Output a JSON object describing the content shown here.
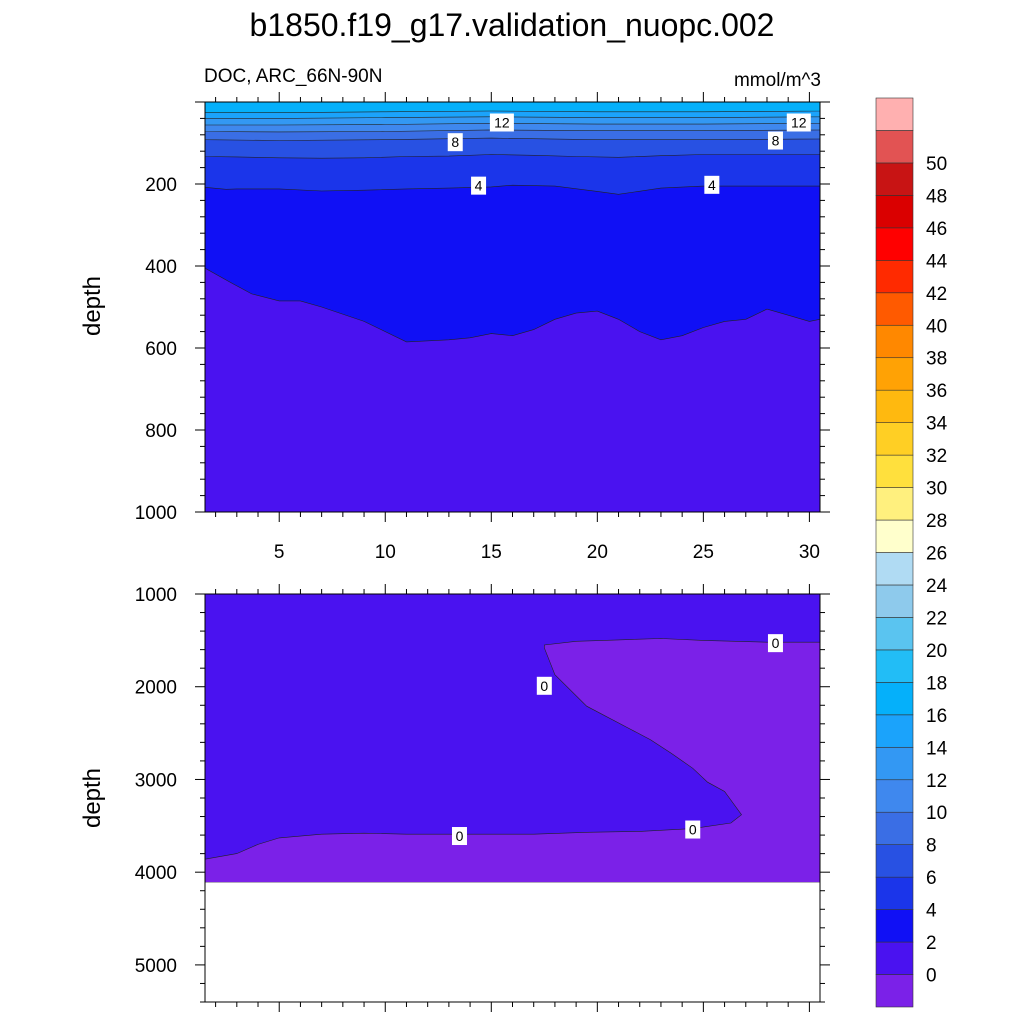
{
  "figure": {
    "title": "b1850.f19_g17.validation_nuopc.002",
    "variable_label": "DOC, ARC_66N-90N",
    "units": "mmol/m^3"
  },
  "chart_data": [
    {
      "type": "contour",
      "panel": "upper",
      "xlabel": "",
      "ylabel": "depth",
      "xlim": [
        1.5,
        30.5
      ],
      "ylim": [
        1000,
        0
      ],
      "x_ticks": [
        5,
        10,
        15,
        20,
        25,
        30
      ],
      "y_ticks": [
        200,
        400,
        600,
        800,
        1000
      ],
      "contour_labels": [
        {
          "text": "12",
          "x": 15.5,
          "y": 50
        },
        {
          "text": "12",
          "x": 29.5,
          "y": 50
        },
        {
          "text": "8",
          "x": 13.3,
          "y": 98
        },
        {
          "text": "8",
          "x": 28.4,
          "y": 94
        },
        {
          "text": "4",
          "x": 14.4,
          "y": 204
        },
        {
          "text": "4",
          "x": 25.4,
          "y": 202
        }
      ],
      "level_boundaries": [
        {
          "level": 2,
          "x": [
            1.5,
            2.7,
            3.7,
            5,
            6,
            7,
            9,
            11,
            13,
            14,
            15,
            16,
            17,
            18,
            19,
            20,
            21,
            22,
            23,
            24,
            25,
            26,
            27,
            28,
            29,
            30,
            30.5
          ],
          "y": [
            405,
            440,
            468,
            485,
            485,
            500,
            535,
            585,
            580,
            575,
            565,
            570,
            555,
            530,
            515,
            510,
            530,
            560,
            580,
            570,
            550,
            535,
            530,
            505,
            520,
            535,
            530
          ]
        },
        {
          "level": 4,
          "x": [
            1.5,
            2.5,
            3,
            5,
            7,
            9,
            11,
            13,
            15,
            16,
            18,
            20,
            21,
            23,
            25,
            27,
            29,
            30.5
          ],
          "y": [
            208,
            213,
            212,
            212,
            217,
            215,
            212,
            210,
            207,
            203,
            205,
            218,
            225,
            210,
            205,
            205,
            205,
            205
          ]
        },
        {
          "level": 6,
          "x": [
            1.5,
            3,
            5,
            7,
            9,
            11,
            13,
            15,
            17,
            19,
            21,
            23,
            25,
            27,
            29,
            30.5
          ],
          "y": [
            133,
            134,
            136,
            137,
            136,
            133,
            132,
            128,
            130,
            133,
            135,
            131,
            128,
            128,
            128,
            128
          ]
        },
        {
          "level": 8,
          "x": [
            1.5,
            5,
            10,
            15,
            20,
            25,
            30.5
          ],
          "y": [
            92,
            94,
            92,
            88,
            92,
            92,
            90
          ]
        },
        {
          "level": 10,
          "x": [
            1.5,
            5,
            10,
            15,
            20,
            25,
            30.5
          ],
          "y": [
            72,
            73,
            72,
            68,
            70,
            70,
            68
          ]
        },
        {
          "level": 12,
          "x": [
            1.5,
            5,
            10,
            15,
            20,
            25,
            30.5
          ],
          "y": [
            56,
            56,
            55,
            52,
            54,
            54,
            52
          ]
        },
        {
          "level": 14,
          "x": [
            1.5,
            5,
            10,
            15,
            20,
            25,
            30.5
          ],
          "y": [
            40,
            40,
            38,
            36,
            38,
            38,
            36
          ]
        },
        {
          "level": 16,
          "x": [
            1.5,
            5,
            10,
            15,
            20,
            25,
            30.5
          ],
          "y": [
            26,
            26,
            24,
            22,
            24,
            24,
            22
          ]
        }
      ]
    },
    {
      "type": "contour",
      "panel": "lower",
      "xlabel": "",
      "ylabel": "depth",
      "xlim": [
        1.5,
        30.5
      ],
      "ylim": [
        5400,
        1000
      ],
      "x_ticks": [
        5,
        10,
        15,
        20,
        25,
        30
      ],
      "y_ticks": [
        1000,
        2000,
        3000,
        4000,
        5000
      ],
      "no_data_below_depth": 4110,
      "contour_labels": [
        {
          "text": "0",
          "x": 28.4,
          "y": 1530
        },
        {
          "text": "0",
          "x": 17.5,
          "y": 1990
        },
        {
          "text": "0",
          "x": 13.5,
          "y": 3610
        },
        {
          "text": "0",
          "x": 24.5,
          "y": 3540
        }
      ],
      "negative_region_outline": {
        "x": [
          17.5,
          18,
          19.5,
          21.5,
          22.5,
          23.5,
          24.5,
          25.2,
          26,
          26.8,
          26.3,
          24.5,
          22,
          19.5,
          17,
          14,
          11,
          9,
          7,
          5,
          4,
          3,
          2,
          1.5,
          1.5,
          30.5,
          30.5,
          28,
          25,
          23,
          21,
          19,
          17.5
        ],
        "y": [
          1580,
          1870,
          2210,
          2450,
          2570,
          2720,
          2880,
          3030,
          3130,
          3380,
          3470,
          3530,
          3560,
          3570,
          3590,
          3590,
          3590,
          3580,
          3590,
          3630,
          3700,
          3800,
          3840,
          3860,
          4110,
          4110,
          1520,
          1520,
          1500,
          1480,
          1495,
          1510,
          1550
        ]
      }
    }
  ],
  "colorbar": {
    "labels": [
      "0",
      "2",
      "4",
      "6",
      "8",
      "10",
      "12",
      "14",
      "16",
      "18",
      "20",
      "22",
      "24",
      "26",
      "28",
      "30",
      "32",
      "34",
      "36",
      "38",
      "40",
      "42",
      "44",
      "46",
      "48",
      "50"
    ],
    "colors": [
      "#7b21e8",
      "#4a12f0",
      "#1010f5",
      "#1b35ea",
      "#2851e3",
      "#3a6ee5",
      "#3f88ee",
      "#3398f3",
      "#1ba3fb",
      "#05b0fa",
      "#22bdf6",
      "#5ac4f0",
      "#8ecaec",
      "#b0dbf3",
      "#ffffcc",
      "#fff07e",
      "#ffe03d",
      "#ffcf24",
      "#ffb90f",
      "#ffa205",
      "#ff8800",
      "#ff5a00",
      "#ff2a00",
      "#ff0000",
      "#da0000",
      "#c81414",
      "#e25353",
      "#ffb0b0"
    ]
  }
}
